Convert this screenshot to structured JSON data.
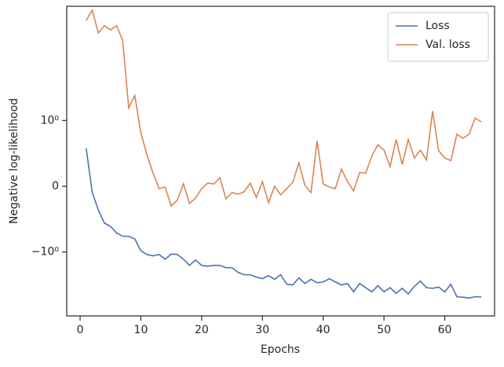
{
  "chart_data": {
    "type": "line",
    "xlabel": "Epochs",
    "ylabel": "Negative log-likelihood",
    "yscale": "symlog",
    "linthresh": 1,
    "x": [
      1,
      2,
      3,
      4,
      5,
      6,
      7,
      8,
      9,
      10,
      11,
      12,
      13,
      14,
      15,
      16,
      17,
      18,
      19,
      20,
      21,
      22,
      23,
      24,
      25,
      26,
      27,
      28,
      29,
      30,
      31,
      32,
      33,
      34,
      35,
      36,
      37,
      38,
      39,
      40,
      41,
      42,
      43,
      44,
      45,
      46,
      47,
      48,
      49,
      50,
      51,
      52,
      53,
      54,
      55,
      56,
      57,
      58,
      59,
      60,
      61,
      62,
      63,
      64,
      65,
      66
    ],
    "series": [
      {
        "name": "Loss",
        "color": "#4c72b0",
        "values": [
          0.58,
          -0.095,
          -0.36,
          -0.56,
          -0.61,
          -0.71,
          -0.76,
          -0.76,
          -0.8,
          -0.98,
          -1.1,
          -1.16,
          -1.1,
          -1.32,
          -1.08,
          -1.1,
          -1.32,
          -1.68,
          -1.36,
          -1.68,
          -1.73,
          -1.68,
          -1.68,
          -1.84,
          -1.84,
          -2.21,
          -2.42,
          -2.42,
          -2.65,
          -2.82,
          -2.5,
          -2.89,
          -2.42,
          -3.49,
          -3.6,
          -2.73,
          -3.4,
          -2.89,
          -3.3,
          -3.2,
          -2.82,
          -3.2,
          -3.6,
          -3.4,
          -4.7,
          -3.4,
          -4.0,
          -4.7,
          -3.7,
          -4.7,
          -4.0,
          -5.0,
          -4.1,
          -5.1,
          -3.8,
          -3.1,
          -4.0,
          -4.1,
          -3.9,
          -4.7,
          -3.5,
          -5.7,
          -5.8,
          -6.0,
          -5.7,
          -5.7
        ]
      },
      {
        "name": "Val. loss",
        "color": "#dd8452",
        "values": [
          49,
          73,
          30,
          40,
          34,
          40,
          23,
          1.63,
          2.65,
          0.81,
          0.48,
          0.2,
          -0.036,
          -0.012,
          -0.3,
          -0.21,
          0.036,
          -0.26,
          -0.18,
          -0.036,
          0.048,
          0.036,
          0.13,
          -0.19,
          -0.095,
          -0.12,
          -0.083,
          0.048,
          -0.17,
          0.071,
          -0.25,
          0,
          -0.13,
          -0.036,
          0.06,
          0.357,
          0.012,
          -0.095,
          0.69,
          0.036,
          -0.012,
          -0.036,
          0.26,
          0.071,
          -0.071,
          0.21,
          0.2,
          0.46,
          0.63,
          0.55,
          0.3,
          0.71,
          0.33,
          0.71,
          0.43,
          0.55,
          0.4,
          1.44,
          0.54,
          0.43,
          0.39,
          0.79,
          0.73,
          0.79,
          1.1,
          0.98
        ]
      }
    ],
    "xlim": [
      -2.2,
      68.2
    ],
    "xticks": [
      0,
      10,
      20,
      30,
      40,
      50,
      60
    ],
    "ylim": [
      -12,
      85
    ],
    "yticks": [
      {
        "value": -1,
        "label": "−10⁰"
      },
      0,
      {
        "value": 1,
        "label": "10⁰"
      }
    ],
    "legend": "upper right",
    "grid": false
  }
}
